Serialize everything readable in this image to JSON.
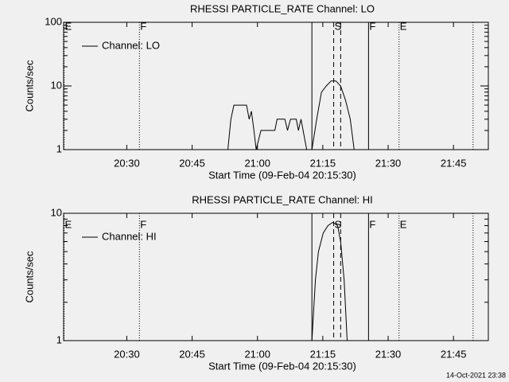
{
  "chart_data": [
    {
      "type": "line",
      "title": "RHESSI PARTICLE_RATE Channel: LO",
      "ylabel": "Counts/sec",
      "xlabel": "Start Time (09-Feb-04 20:15:30)",
      "xlim": [
        1215.5,
        1313
      ],
      "log_y": true,
      "ylim": [
        1,
        100
      ],
      "xticks": [
        {
          "value": 1230,
          "label": "20:30"
        },
        {
          "value": 1245,
          "label": "20:45"
        },
        {
          "value": 1260,
          "label": "21:00"
        },
        {
          "value": 1275,
          "label": "21:15"
        },
        {
          "value": 1290,
          "label": "21:30"
        },
        {
          "value": 1305,
          "label": "21:45"
        }
      ],
      "yticks": [
        1,
        10,
        100
      ],
      "series": [
        {
          "name": "Channel: LO",
          "color": "#000000",
          "x": [
            1253.2,
            1253.9,
            1254.6,
            1257.5,
            1258.1,
            1258.6,
            1259.2,
            1259.7,
            1260.8,
            1264.0,
            1264.5,
            1266.3,
            1266.9,
            1267.6,
            1268.9,
            1269.4,
            1270.0,
            1271.3,
            null,
            1272.5,
            1273.6,
            1274.7,
            1275.8,
            1276.9,
            1278.0,
            1279.1,
            1280.2,
            1281.3,
            1282.2
          ],
          "values": [
            1,
            3,
            5,
            5,
            3,
            4,
            2,
            1,
            2,
            2,
            3,
            3,
            2,
            3,
            3,
            2,
            3,
            1,
            null,
            1,
            3,
            8,
            10,
            12,
            12,
            10,
            6,
            3,
            1
          ]
        }
      ],
      "flags": [
        {
          "x": 1215.6,
          "style": "dotted",
          "label": "E"
        },
        {
          "x": 1232.9,
          "style": "dotted",
          "label": "F"
        },
        {
          "x": 1272.5,
          "style": "solid"
        },
        {
          "x": 1277.5,
          "style": "dashed",
          "label": "S"
        },
        {
          "x": 1279.1,
          "style": "dashed"
        },
        {
          "x": 1285.5,
          "style": "solid",
          "label": "F"
        },
        {
          "x": 1292.5,
          "style": "dotted",
          "label": "E"
        },
        {
          "x": 1309.5,
          "style": "dotted"
        }
      ]
    },
    {
      "type": "line",
      "title": "RHESSI PARTICLE_RATE Channel: HI",
      "ylabel": "Counts/sec",
      "xlabel": "Start Time (09-Feb-04 20:15:30)",
      "xlim": [
        1215.5,
        1313
      ],
      "log_y": true,
      "ylim": [
        1,
        10
      ],
      "xticks": [
        {
          "value": 1230,
          "label": "20:30"
        },
        {
          "value": 1245,
          "label": "20:45"
        },
        {
          "value": 1260,
          "label": "21:00"
        },
        {
          "value": 1275,
          "label": "21:15"
        },
        {
          "value": 1290,
          "label": "21:30"
        },
        {
          "value": 1305,
          "label": "21:45"
        }
      ],
      "yticks": [
        1,
        10
      ],
      "series": [
        {
          "name": "Channel: HI",
          "color": "#000000",
          "x": [
            1272.5,
            1273.3,
            1274.0,
            1275.1,
            1276.2,
            1277.3,
            1278.4,
            1279.1,
            1279.9,
            1280.6
          ],
          "values": [
            1,
            3,
            5,
            7,
            8,
            8.5,
            8,
            6,
            3,
            1
          ]
        }
      ],
      "flags": [
        {
          "x": 1215.6,
          "style": "dotted",
          "label": "E"
        },
        {
          "x": 1232.9,
          "style": "dotted",
          "label": "F"
        },
        {
          "x": 1272.5,
          "style": "solid"
        },
        {
          "x": 1277.5,
          "style": "dashed",
          "label": "S"
        },
        {
          "x": 1279.1,
          "style": "dashed"
        },
        {
          "x": 1285.5,
          "style": "solid",
          "label": "F"
        },
        {
          "x": 1292.5,
          "style": "dotted",
          "label": "E"
        },
        {
          "x": 1309.5,
          "style": "dotted"
        }
      ]
    }
  ],
  "footer": "14-Oct-2021 23:38"
}
